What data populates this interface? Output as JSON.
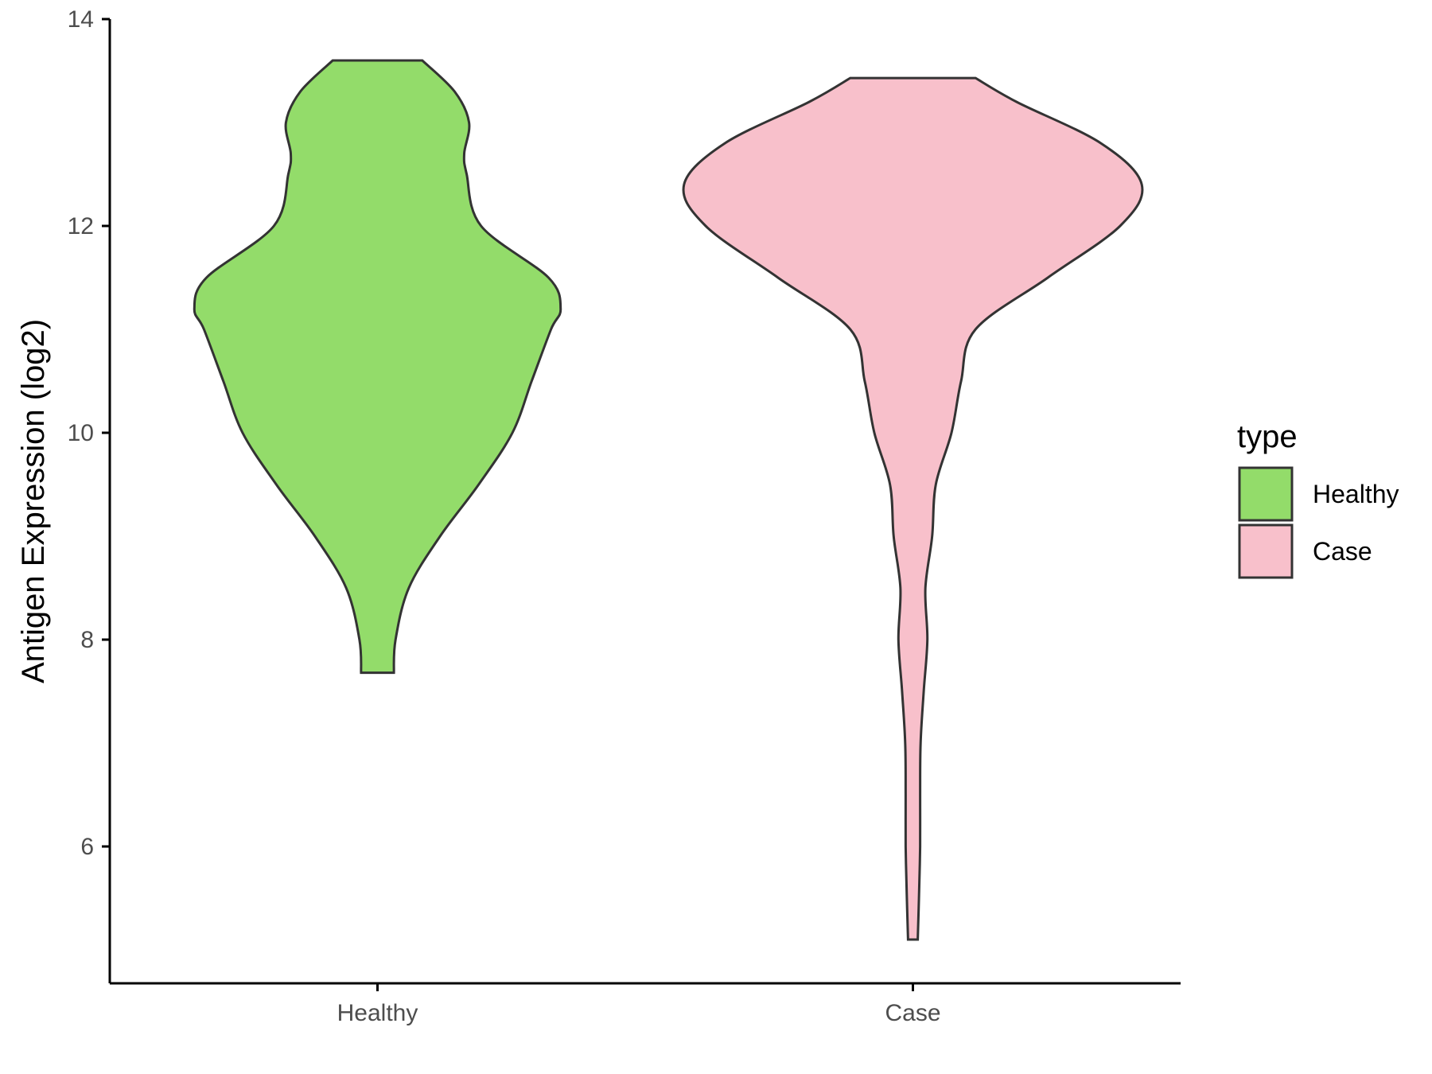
{
  "chart_data": {
    "type": "violin",
    "ylabel": "Antigen Expression (log2)",
    "xlabel": "",
    "ylim": [
      4.8,
      14
    ],
    "y_ticks": [
      6,
      8,
      10,
      12,
      14
    ],
    "categories": [
      "Healthy",
      "Case"
    ],
    "legend": {
      "title": "type",
      "position": "right",
      "entries": [
        {
          "label": "Healthy",
          "color": "#93dc6a"
        },
        {
          "label": "Case",
          "color": "#f8c0cb"
        }
      ]
    },
    "grid": false,
    "series": [
      {
        "name": "Healthy",
        "color": "#93dc6a",
        "min": 7.68,
        "max": 13.6,
        "density": [
          [
            7.68,
            0.068
          ],
          [
            8.0,
            0.075
          ],
          [
            8.5,
            0.13
          ],
          [
            9.0,
            0.26
          ],
          [
            9.5,
            0.42
          ],
          [
            10.0,
            0.56
          ],
          [
            10.5,
            0.64
          ],
          [
            11.0,
            0.72
          ],
          [
            11.2,
            0.76
          ],
          [
            11.5,
            0.71
          ],
          [
            12.0,
            0.43
          ],
          [
            12.5,
            0.37
          ],
          [
            12.7,
            0.36
          ],
          [
            13.0,
            0.38
          ],
          [
            13.3,
            0.32
          ],
          [
            13.6,
            0.186
          ]
        ]
      },
      {
        "name": "Case",
        "color": "#f8c0cb",
        "min": 5.1,
        "max": 13.43,
        "density": [
          [
            5.1,
            0.02
          ],
          [
            5.5,
            0.025
          ],
          [
            6.0,
            0.03
          ],
          [
            6.5,
            0.03
          ],
          [
            7.0,
            0.032
          ],
          [
            7.5,
            0.045
          ],
          [
            8.0,
            0.06
          ],
          [
            8.5,
            0.052
          ],
          [
            9.0,
            0.08
          ],
          [
            9.5,
            0.095
          ],
          [
            10.0,
            0.16
          ],
          [
            10.5,
            0.2
          ],
          [
            11.0,
            0.26
          ],
          [
            11.5,
            0.56
          ],
          [
            12.0,
            0.86
          ],
          [
            12.4,
            0.95
          ],
          [
            12.8,
            0.78
          ],
          [
            13.2,
            0.43
          ],
          [
            13.43,
            0.26
          ]
        ]
      }
    ]
  }
}
